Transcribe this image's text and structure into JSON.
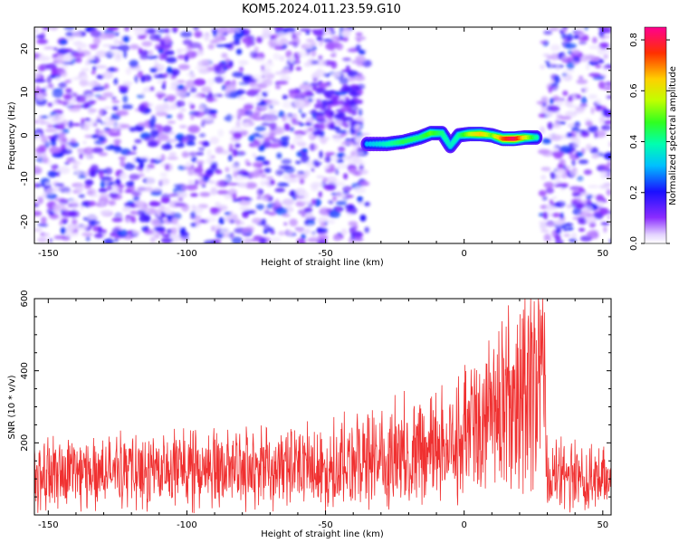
{
  "figure": {
    "title": "KOM5.2024.011.23.59.G10"
  },
  "chart_data": [
    {
      "type": "heatmap",
      "title": "KOM5.2024.011.23.59.G10",
      "xlabel": "Height of straight line (km)",
      "ylabel": "Frequency (Hz)",
      "xlim": [
        -155,
        53
      ],
      "ylim": [
        -25,
        25
      ],
      "x_ticks": [
        -150,
        -100,
        -50,
        0,
        50
      ],
      "y_ticks": [
        -20,
        -10,
        0,
        10,
        20
      ],
      "colorbar": {
        "label": "Normalized spectral amplitude",
        "range": [
          0,
          0.85
        ],
        "ticks": [
          0.0,
          0.2,
          0.4,
          0.6,
          0.8
        ]
      },
      "features": {
        "noise_region_left_km": [
          -155,
          -35
        ],
        "noise_region_right_km": [
          28,
          53
        ],
        "signal_track": [
          {
            "x": -35,
            "f": -2.0,
            "amp": 0.3
          },
          {
            "x": -28,
            "f": -2.0,
            "amp": 0.38
          },
          {
            "x": -22,
            "f": -1.5,
            "amp": 0.45
          },
          {
            "x": -16,
            "f": -0.5,
            "amp": 0.42
          },
          {
            "x": -12,
            "f": 0.5,
            "amp": 0.5
          },
          {
            "x": -8,
            "f": 0.5,
            "amp": 0.42
          },
          {
            "x": -5,
            "f": -2.5,
            "amp": 0.35
          },
          {
            "x": -2,
            "f": 0.0,
            "amp": 0.4
          },
          {
            "x": 2,
            "f": 0.3,
            "amp": 0.55
          },
          {
            "x": 6,
            "f": 0.3,
            "amp": 0.65
          },
          {
            "x": 10,
            "f": 0.0,
            "amp": 0.5
          },
          {
            "x": 14,
            "f": -0.8,
            "amp": 0.72
          },
          {
            "x": 18,
            "f": -0.8,
            "amp": 0.82
          },
          {
            "x": 22,
            "f": -0.5,
            "amp": 0.6
          },
          {
            "x": 26,
            "f": -0.5,
            "amp": 0.4
          }
        ]
      }
    },
    {
      "type": "line",
      "xlabel": "Height of straight line (km)",
      "ylabel": "SNR (10 * v/v)",
      "xlim": [
        -155,
        53
      ],
      "ylim": [
        0,
        600
      ],
      "x_ticks": [
        -150,
        -100,
        -50,
        0,
        50
      ],
      "y_ticks": [
        200,
        400,
        600
      ],
      "series": [
        {
          "color": "#f03030",
          "envelope": [
            {
              "x": -155,
              "base": 100,
              "peak": 230
            },
            {
              "x": -120,
              "base": 100,
              "peak": 235
            },
            {
              "x": -80,
              "base": 105,
              "peak": 250
            },
            {
              "x": -50,
              "base": 115,
              "peak": 270
            },
            {
              "x": -30,
              "base": 130,
              "peak": 320
            },
            {
              "x": -10,
              "base": 160,
              "peak": 380
            },
            {
              "x": 5,
              "base": 210,
              "peak": 420
            },
            {
              "x": 15,
              "base": 290,
              "peak": 500
            },
            {
              "x": 22,
              "base": 320,
              "peak": 600
            },
            {
              "x": 29,
              "base": 340,
              "peak": 600
            },
            {
              "x": 30,
              "base": 90,
              "peak": 230
            },
            {
              "x": 53,
              "base": 90,
              "peak": 240
            }
          ]
        }
      ]
    }
  ]
}
